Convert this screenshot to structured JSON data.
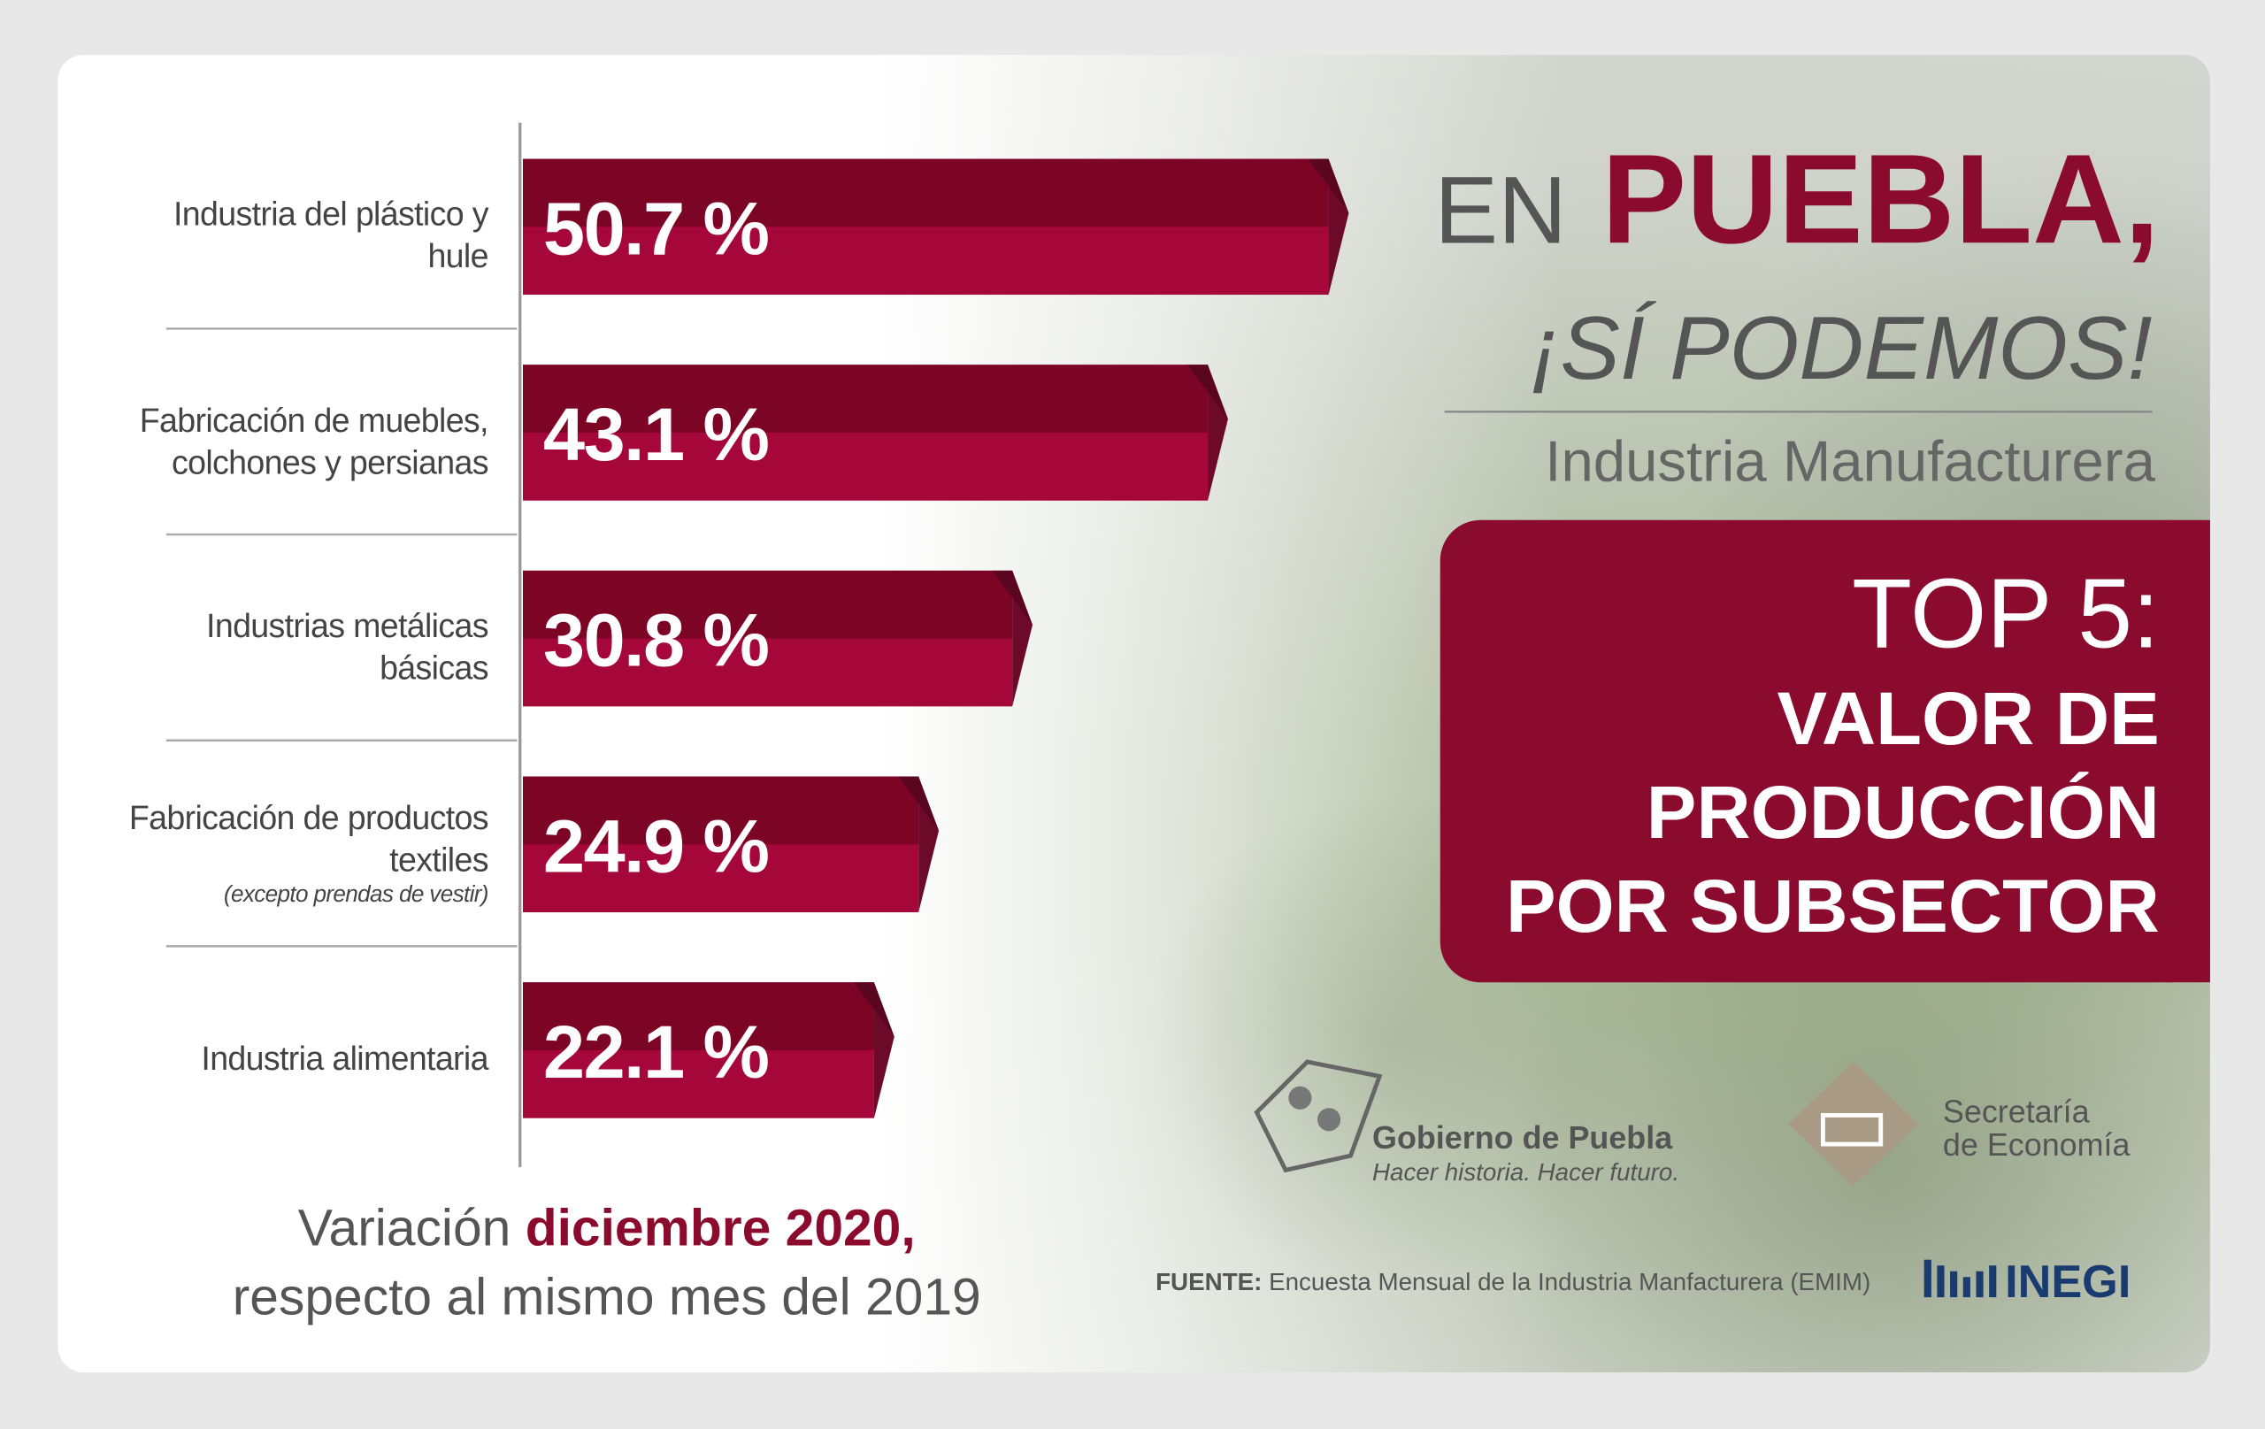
{
  "chart_data": {
    "type": "bar",
    "orientation": "horizontal",
    "categories": [
      "Industria del plástico y hule",
      "Fabricación de muebles, colchones y persianas",
      "Industrias metálicas básicas",
      "Fabricación de productos textiles",
      "Industria alimentaria"
    ],
    "category_notes": [
      null,
      null,
      null,
      "(excepto prendas de vestir)",
      null
    ],
    "values": [
      50.7,
      43.1,
      30.8,
      24.9,
      22.1
    ],
    "value_labels": [
      "50.7 %",
      "43.1 %",
      "30.8 %",
      "24.9 %",
      "22.1 %"
    ],
    "color": "#a5073a"
  },
  "header": {
    "title_prefix": "EN",
    "title_main": "PUEBLA,",
    "slogan": "¡SÍ PODEMOS!",
    "subtitle": "Industria Manufacturera"
  },
  "box": {
    "lines": [
      "TOP 5:",
      "VALOR DE",
      "PRODUCCIÓN",
      "POR SUBSECTOR"
    ]
  },
  "note": {
    "prefix": "Variación",
    "highlight": "diciembre 2020,",
    "line2": "respecto al mismo mes del 2019"
  },
  "logos": {
    "gobierno": "Gobierno de Puebla",
    "gobierno_tagline": "Hacer historia. Hacer futuro.",
    "secretaria_1": "Secretaría",
    "secretaria_2": "de Economía",
    "inegi": "INEGI"
  },
  "source": {
    "label": "FUENTE:",
    "text": "Encuesta Mensual de la Industria Manfacturera (EMIM)"
  }
}
